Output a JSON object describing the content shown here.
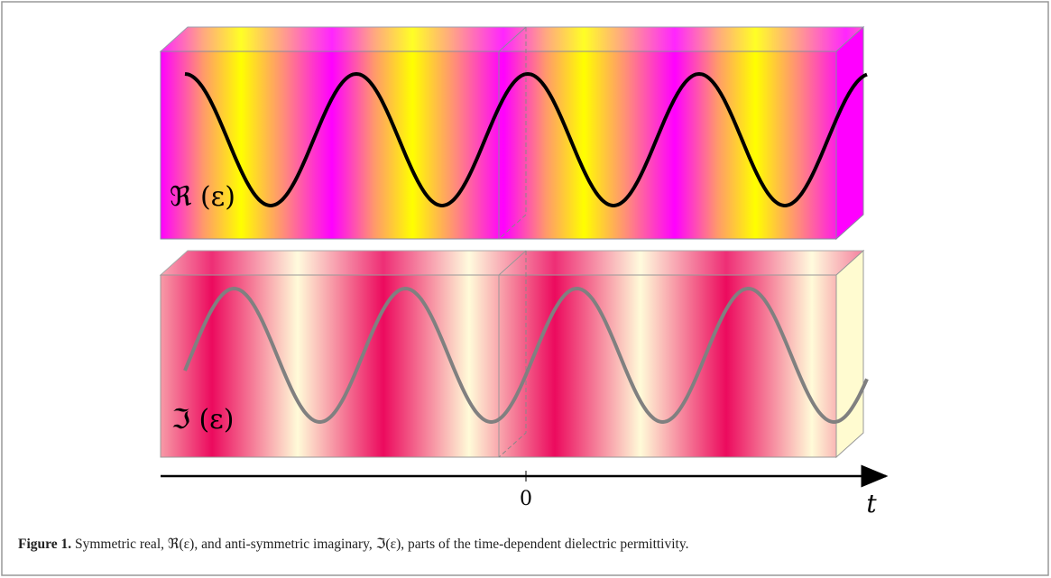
{
  "figure": {
    "panels": [
      {
        "label": "ℜ (ε)"
      },
      {
        "label": "ℑ (ε)"
      }
    ],
    "axis": {
      "origin_label": "0",
      "label": "t"
    },
    "caption": {
      "number": "Figure 1.",
      "text": " Symmetric real, ℜ(ε), and anti-symmetric imaginary, ℑ(ε), parts of the time-dependent dielectric permittivity."
    }
  }
}
